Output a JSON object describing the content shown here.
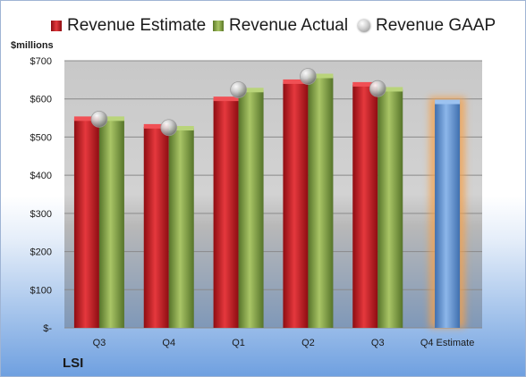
{
  "chart_data": {
    "type": "bar",
    "ylabel": "$millions",
    "categories": [
      "Q3",
      "Q4",
      "Q1",
      "Q2",
      "Q3",
      "Q4 Estimate"
    ],
    "ylim": [
      0,
      700
    ],
    "yticks": [
      0,
      100,
      200,
      300,
      400,
      500,
      600,
      700
    ],
    "ytick_labels": [
      "$-",
      "$100",
      "$200",
      "$300",
      "$400",
      "$500",
      "$600",
      "$700"
    ],
    "series": [
      {
        "name": "Revenue Estimate",
        "color": "#d42a2f",
        "values": [
          547,
          527,
          599,
          644,
          637,
          null
        ]
      },
      {
        "name": "Revenue Actual",
        "color": "#8fae4a",
        "values": [
          547,
          522,
          622,
          659,
          624,
          null
        ]
      },
      {
        "name": "Revenue GAAP",
        "color": "#c8c8c8",
        "marker": "circle",
        "values": [
          547,
          525,
          624,
          659,
          627,
          null
        ]
      }
    ],
    "forecast": {
      "category": "Q4 Estimate",
      "value": 591,
      "color": "#6f9edc",
      "glow": "#f5a04a"
    },
    "company": "LSI",
    "grid": true,
    "legend_position": "top"
  }
}
